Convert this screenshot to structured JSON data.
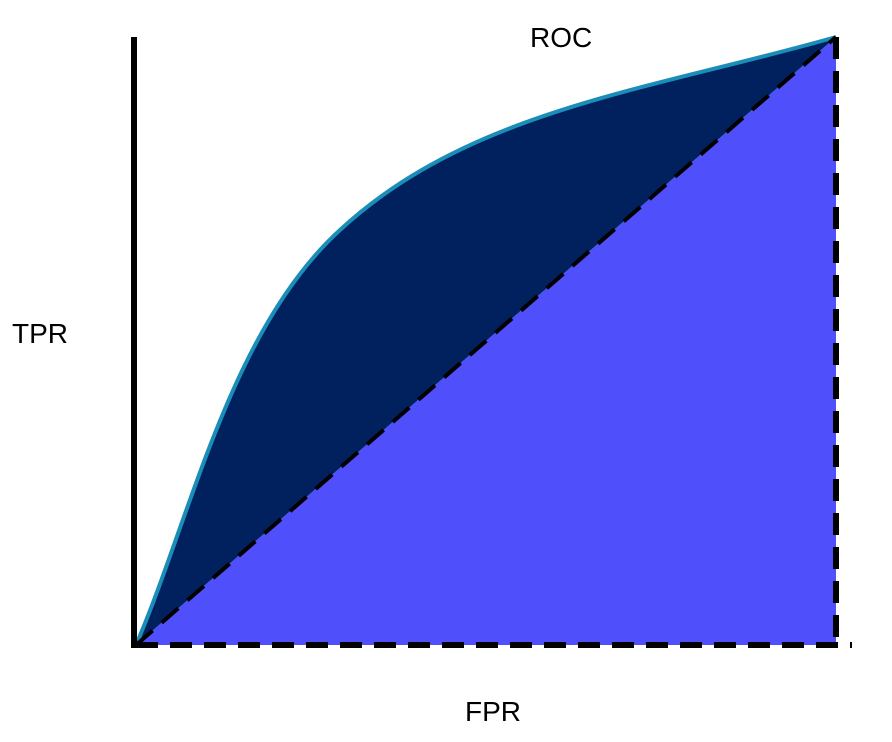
{
  "title": "ROC",
  "xlabel": "FPR",
  "ylabel": "TPR",
  "colors": {
    "auc_fill": "#00215e",
    "baseline_fill": "#4f4ffc",
    "curve_stroke": "#1a8db8",
    "axes": "#000000"
  }
}
